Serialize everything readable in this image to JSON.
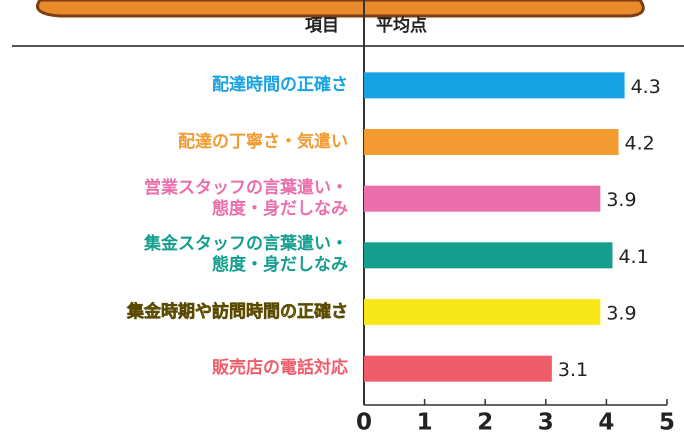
{
  "chart_data": {
    "type": "bar",
    "orientation": "horizontal",
    "headers": [
      "項目",
      "平均点"
    ],
    "categories": [
      "配達時間の正確さ",
      "配達の丁寧さ・気遣い",
      "営業スタッフの言葉遣い・\n態度・身だしなみ",
      "集金スタッフの言葉遣い・\n態度・身だしなみ",
      "集金時期や訪問時間の正確さ",
      "販売店の電話対応"
    ],
    "values": [
      4.3,
      4.2,
      3.9,
      4.1,
      3.9,
      3.1
    ],
    "colors": [
      "#17a3e3",
      "#f39b31",
      "#ea6fab",
      "#149e8e",
      "#f7e81a",
      "#ef5d6b"
    ],
    "xlim": [
      0,
      5
    ],
    "xticks": [
      0,
      1,
      2,
      3,
      4,
      5
    ]
  }
}
